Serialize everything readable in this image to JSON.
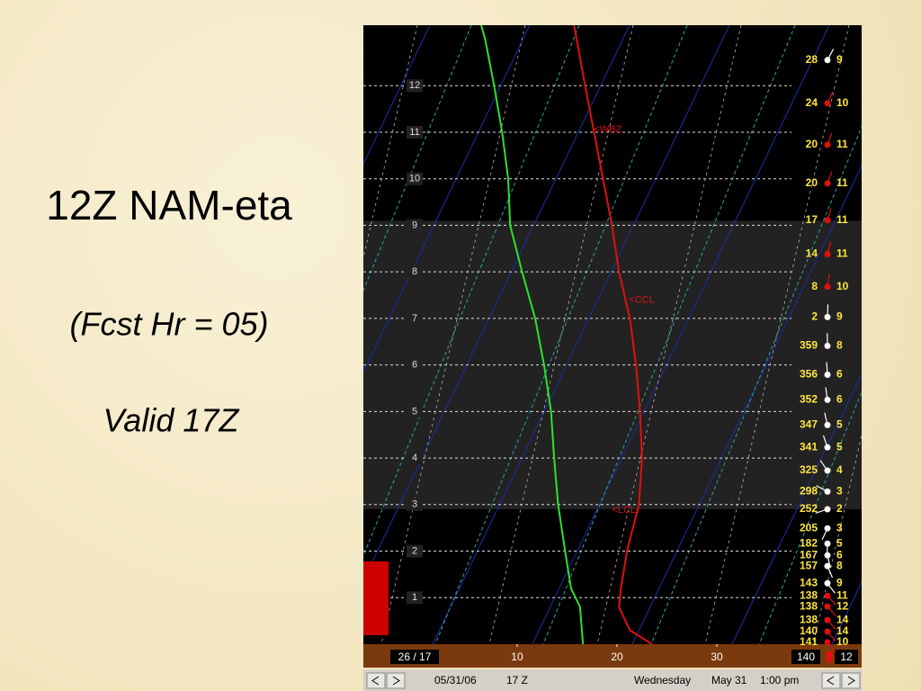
{
  "slide": {
    "title": "12Z NAM-eta",
    "subtitle": "(Fcst Hr = 05)",
    "valid": "Valid 17Z"
  },
  "chart_data": {
    "type": "sounding",
    "xlim": [
      -5.4,
      44.5
    ],
    "xticks": [
      10,
      20,
      30
    ],
    "ylim": [
      0,
      13.3
    ],
    "yticks": [
      1,
      2,
      3,
      4,
      5,
      6,
      7,
      8,
      9,
      10,
      11,
      12
    ],
    "grid": true,
    "shaded_layer": [
      2.9,
      9.1
    ],
    "series": [
      {
        "color": "#e01010",
        "x": [
          23.5,
          21.3,
          20.2,
          20.4,
          21.0,
          22.2,
          22.5,
          22.3,
          21.9,
          21.3,
          20.2,
          19.5,
          18.6,
          17.7,
          16.8,
          15.7
        ],
        "y": [
          0,
          0.3,
          0.8,
          1.2,
          2,
          3,
          4,
          5,
          6,
          7,
          8,
          9,
          10,
          11,
          12,
          13.3
        ]
      },
      {
        "color": "#2ee02e",
        "x": [
          16.6,
          16.3,
          15.4,
          14.8,
          14.1,
          13.7,
          13.4,
          12.7,
          11.8,
          10.5,
          9.3,
          9.1,
          8.5,
          7.7,
          6.8,
          6.4
        ],
        "y": [
          0,
          0.8,
          1.2,
          2,
          3,
          4,
          5,
          6,
          7,
          8,
          9,
          10,
          11,
          12,
          13,
          13.3
        ]
      }
    ],
    "annotations": [
      {
        "text": "<WBZ",
        "x": 17.7,
        "y": 11.06
      },
      {
        "text": "<CCL",
        "x": 21.2,
        "y": 7.39
      },
      {
        "text": "<LCL",
        "x": 19.5,
        "y": 2.88
      }
    ],
    "winds": {
      "heights": [
        12.55,
        11.62,
        10.73,
        9.9,
        9.11,
        8.38,
        7.68,
        7.03,
        6.41,
        5.79,
        5.25,
        4.71,
        4.23,
        3.73,
        3.28,
        2.9,
        2.49,
        2.16,
        1.91,
        1.68,
        1.31,
        1.04,
        0.81,
        0.52,
        0.27,
        0.04
      ],
      "directions": [
        28,
        24,
        20,
        20,
        17,
        14,
        8,
        2,
        359,
        356,
        352,
        347,
        341,
        325,
        298,
        252,
        205,
        182,
        167,
        157,
        143,
        138,
        138,
        138,
        140,
        141
      ],
      "speeds": [
        9,
        10,
        11,
        11,
        11,
        11,
        10,
        9,
        8,
        6,
        6,
        5,
        5,
        4,
        3,
        2,
        3,
        5,
        6,
        8,
        9,
        11,
        12,
        14,
        14,
        10
      ],
      "colors": [
        "#ffffff",
        "#e01010",
        "#e01010",
        "#e01010",
        "#e01010",
        "#e01010",
        "#e01010",
        "#ffffff",
        "#ffffff",
        "#ffffff",
        "#ffffff",
        "#ffffff",
        "#ffffff",
        "#ffffff",
        "#ffffff",
        "#ffffff",
        "#ffffff",
        "#ffffff",
        "#ffffff",
        "#ffffff",
        "#ffffff",
        "#e01010",
        "#e01010",
        "#e01010",
        "#e01010",
        "#e01010"
      ]
    },
    "surface": {
      "temp_dew": "26 / 17",
      "wind_dir": "140",
      "wind_speed": "12"
    },
    "status": {
      "date": "05/31/06",
      "hour": "17 Z",
      "day": "Wednesday",
      "month_day": "May 31",
      "time": "1:00 pm"
    }
  }
}
